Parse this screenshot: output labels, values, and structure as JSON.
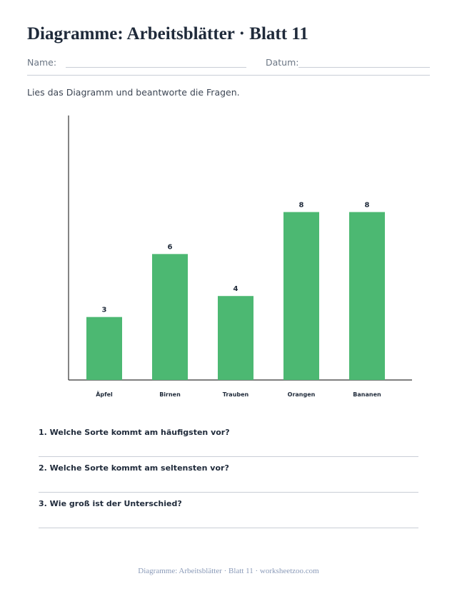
{
  "header": {
    "title": "Diagramme: Arbeitsblätter · Blatt 11",
    "name_label": "Name:",
    "date_label": "Datum:"
  },
  "instruction": "Lies das Diagramm und beantworte die Fragen.",
  "chart_data": {
    "type": "bar",
    "categories": [
      "Äpfel",
      "Birnen",
      "Trauben",
      "Orangen",
      "Bananen"
    ],
    "values": [
      3,
      6,
      4,
      8,
      8
    ],
    "title": "",
    "xlabel": "",
    "ylabel": "",
    "ylim": [
      0,
      12.6
    ],
    "grid": false,
    "data_labels": true,
    "bar_color": "#4cb872"
  },
  "questions": [
    {
      "text": "1. Welche Sorte kommt am häufigsten vor?"
    },
    {
      "text": "2. Welche Sorte kommt am seltensten vor?"
    },
    {
      "text": "3. Wie groß ist der Unterschied?"
    }
  ],
  "footer": "Diagramme: Arbeitsblätter · Blatt 11 · worksheetzoo.com"
}
